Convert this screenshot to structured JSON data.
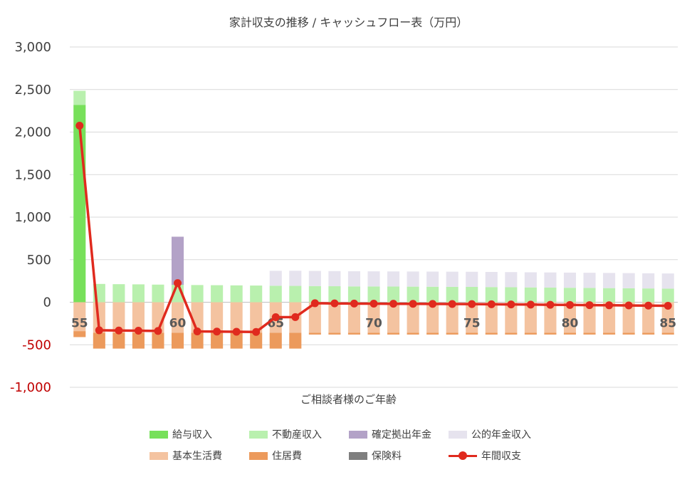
{
  "chart_data": {
    "type": "bar",
    "title": "家計収支の推移 / キャッシュフロー表（万円）",
    "xlabel": "ご相談者様のご年齢",
    "ylabel": "",
    "ylim": [
      -1000,
      3000
    ],
    "yticks": [
      3000,
      2500,
      2000,
      1500,
      1000,
      500,
      0,
      -500,
      -1000
    ],
    "ytick_labels": [
      "3,000",
      "2,500",
      "2,000",
      "1,500",
      "1,000",
      "500",
      "0",
      "-500",
      "-1,000"
    ],
    "categories": [
      55,
      56,
      57,
      58,
      59,
      60,
      61,
      62,
      63,
      64,
      65,
      66,
      67,
      68,
      69,
      70,
      71,
      72,
      73,
      74,
      75,
      76,
      77,
      78,
      79,
      80,
      81,
      82,
      83,
      84,
      85
    ],
    "xtick_labels": [
      {
        "age": 55,
        "label": "55"
      },
      {
        "age": 60,
        "label": "60"
      },
      {
        "age": 65,
        "label": "65"
      },
      {
        "age": 70,
        "label": "70"
      },
      {
        "age": 75,
        "label": "75"
      },
      {
        "age": 80,
        "label": "80"
      },
      {
        "age": 85,
        "label": "85"
      }
    ],
    "series": [
      {
        "name": "給与収入",
        "color": "#77e05a",
        "kind": "bar",
        "values": [
          2320,
          0,
          0,
          0,
          0,
          0,
          0,
          0,
          0,
          0,
          0,
          0,
          0,
          0,
          0,
          0,
          0,
          0,
          0,
          0,
          0,
          0,
          0,
          0,
          0,
          0,
          0,
          0,
          0,
          0,
          0
        ]
      },
      {
        "name": "不動産収入",
        "color": "#b9f0ae",
        "kind": "bar",
        "values": [
          165,
          215,
          212,
          210,
          207,
          205,
          202,
          200,
          198,
          196,
          194,
          192,
          190,
          188,
          186,
          185,
          184,
          183,
          182,
          181,
          180,
          178,
          176,
          174,
          172,
          170,
          168,
          166,
          164,
          162,
          160
        ]
      },
      {
        "name": "確定拠出年金",
        "color": "#b3a2c7",
        "kind": "bar",
        "values": [
          0,
          0,
          0,
          0,
          0,
          565,
          0,
          0,
          0,
          0,
          0,
          0,
          0,
          0,
          0,
          0,
          0,
          0,
          0,
          0,
          0,
          0,
          0,
          0,
          0,
          0,
          0,
          0,
          0,
          0,
          0
        ]
      },
      {
        "name": "公的年金収入",
        "color": "#e6e3ee",
        "kind": "bar",
        "values": [
          0,
          0,
          0,
          0,
          0,
          0,
          0,
          0,
          0,
          0,
          175,
          178,
          178,
          178,
          178,
          178,
          178,
          178,
          178,
          178,
          178,
          178,
          178,
          178,
          178,
          178,
          178,
          178,
          178,
          178,
          178
        ]
      },
      {
        "name": "基本生活費",
        "color": "#f4c3a0",
        "kind": "bar",
        "values": [
          -340,
          -360,
          -360,
          -360,
          -360,
          -360,
          -360,
          -360,
          -360,
          -360,
          -360,
          -360,
          -360,
          -360,
          -360,
          -360,
          -360,
          -360,
          -360,
          -360,
          -360,
          -360,
          -360,
          -360,
          -360,
          -360,
          -360,
          -360,
          -360,
          -360,
          -360
        ]
      },
      {
        "name": "住居費",
        "color": "#ec9a5c",
        "kind": "bar",
        "values": [
          -70,
          -185,
          -185,
          -185,
          -185,
          -185,
          -185,
          -185,
          -185,
          -185,
          -185,
          -185,
          -20,
          -20,
          -20,
          -20,
          -20,
          -20,
          -20,
          -20,
          -20,
          -20,
          -20,
          -20,
          -20,
          -20,
          -20,
          -20,
          -20,
          -20,
          -20
        ]
      },
      {
        "name": "保険料",
        "color": "#7f7f7f",
        "kind": "bar",
        "values": [
          0,
          0,
          0,
          0,
          0,
          0,
          0,
          0,
          0,
          0,
          0,
          0,
          0,
          0,
          0,
          0,
          0,
          0,
          0,
          0,
          0,
          0,
          0,
          0,
          0,
          0,
          0,
          0,
          0,
          0,
          0
        ]
      },
      {
        "name": "年間収支",
        "color": "#e02a1e",
        "kind": "line",
        "values": [
          2075,
          -330,
          -333,
          -335,
          -338,
          225,
          -343,
          -345,
          -347,
          -349,
          -176,
          -175,
          -12,
          -14,
          -16,
          -17,
          -18,
          -19,
          -20,
          -21,
          -22,
          -24,
          -26,
          -28,
          -30,
          -32,
          -34,
          -36,
          -38,
          -40,
          -42
        ]
      }
    ],
    "legend": {
      "position": "bottom",
      "rows": [
        [
          "給与収入",
          "不動産収入",
          "確定拠出年金",
          "公的年金収入"
        ],
        [
          "基本生活費",
          "住居費",
          "保険料",
          "年間収支"
        ]
      ]
    },
    "grid": true
  }
}
